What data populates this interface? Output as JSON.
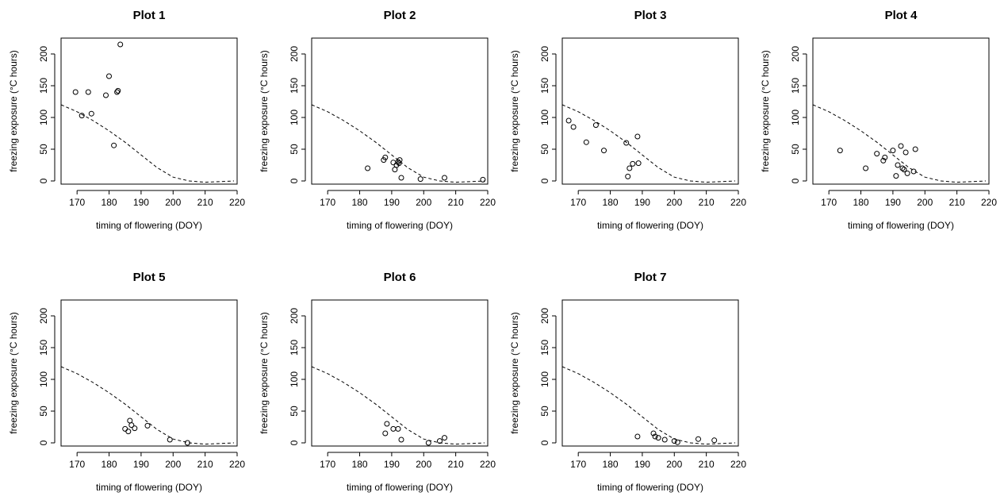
{
  "chart_data": [
    {
      "type": "scatter",
      "title": "Plot 1",
      "xlabel": "timing of flowering (DOY)",
      "ylabel": "freezing exposure (°C hours)",
      "xlim": [
        165,
        220
      ],
      "ylim": [
        -5,
        225
      ],
      "xticks": [
        170,
        180,
        190,
        200,
        210,
        220
      ],
      "yticks": [
        0,
        50,
        100,
        150,
        200
      ],
      "points": [
        [
          169.5,
          140
        ],
        [
          171.5,
          103
        ],
        [
          173.5,
          140
        ],
        [
          174.5,
          106
        ],
        [
          179.0,
          135
        ],
        [
          180.0,
          165
        ],
        [
          181.5,
          56
        ],
        [
          182.5,
          140
        ],
        [
          182.8,
          142
        ],
        [
          183.5,
          215
        ]
      ],
      "curve": [
        [
          165,
          120
        ],
        [
          170,
          109
        ],
        [
          175,
          95
        ],
        [
          180,
          79
        ],
        [
          185,
          61
        ],
        [
          190,
          41
        ],
        [
          195,
          21
        ],
        [
          200,
          6
        ],
        [
          205,
          0
        ],
        [
          210,
          -2
        ],
        [
          215,
          -1
        ],
        [
          219,
          0
        ]
      ]
    },
    {
      "type": "scatter",
      "title": "Plot 2",
      "xlabel": "timing of flowering (DOY)",
      "ylabel": "freezing exposure (°C hours)",
      "xlim": [
        165,
        220
      ],
      "ylim": [
        -5,
        225
      ],
      "xticks": [
        170,
        180,
        190,
        200,
        210,
        220
      ],
      "yticks": [
        0,
        50,
        100,
        150,
        200
      ],
      "points": [
        [
          182.5,
          20
        ],
        [
          187.5,
          33
        ],
        [
          188.0,
          37
        ],
        [
          190.5,
          29
        ],
        [
          191.0,
          18
        ],
        [
          191.5,
          25
        ],
        [
          192.0,
          30
        ],
        [
          192.3,
          28
        ],
        [
          192.5,
          33
        ],
        [
          193.0,
          5
        ],
        [
          199.0,
          3
        ],
        [
          206.5,
          5
        ],
        [
          218.5,
          2
        ]
      ],
      "curve": [
        [
          165,
          120
        ],
        [
          170,
          109
        ],
        [
          175,
          95
        ],
        [
          180,
          79
        ],
        [
          185,
          61
        ],
        [
          190,
          41
        ],
        [
          195,
          21
        ],
        [
          200,
          6
        ],
        [
          205,
          0
        ],
        [
          210,
          -2
        ],
        [
          215,
          -1
        ],
        [
          219,
          0
        ]
      ]
    },
    {
      "type": "scatter",
      "title": "Plot 3",
      "xlabel": "timing of flowering (DOY)",
      "ylabel": "freezing exposure (°C hours)",
      "xlim": [
        165,
        220
      ],
      "ylim": [
        -5,
        225
      ],
      "xticks": [
        170,
        180,
        190,
        200,
        210,
        220
      ],
      "yticks": [
        0,
        50,
        100,
        150,
        200
      ],
      "points": [
        [
          167.0,
          95
        ],
        [
          168.5,
          85
        ],
        [
          172.5,
          61
        ],
        [
          175.5,
          88
        ],
        [
          178.0,
          48
        ],
        [
          185.0,
          60
        ],
        [
          185.5,
          7
        ],
        [
          186.0,
          20
        ],
        [
          187.0,
          27
        ],
        [
          188.5,
          70
        ],
        [
          188.8,
          28
        ]
      ],
      "curve": [
        [
          165,
          120
        ],
        [
          170,
          109
        ],
        [
          175,
          95
        ],
        [
          180,
          79
        ],
        [
          185,
          61
        ],
        [
          190,
          41
        ],
        [
          195,
          21
        ],
        [
          200,
          6
        ],
        [
          205,
          0
        ],
        [
          210,
          -2
        ],
        [
          215,
          -1
        ],
        [
          219,
          0
        ]
      ]
    },
    {
      "type": "scatter",
      "title": "Plot 4",
      "xlabel": "timing of flowering (DOY)",
      "ylabel": "freezing exposure (°C hours)",
      "xlim": [
        165,
        220
      ],
      "ylim": [
        -5,
        225
      ],
      "xticks": [
        170,
        180,
        190,
        200,
        210,
        220
      ],
      "yticks": [
        0,
        50,
        100,
        150,
        200
      ],
      "points": [
        [
          173.5,
          48
        ],
        [
          181.5,
          20
        ],
        [
          185.0,
          43
        ],
        [
          187.0,
          32
        ],
        [
          187.5,
          37
        ],
        [
          190.0,
          48
        ],
        [
          191.0,
          8
        ],
        [
          191.5,
          25
        ],
        [
          192.5,
          55
        ],
        [
          193.0,
          20
        ],
        [
          193.5,
          18
        ],
        [
          194.0,
          45
        ],
        [
          194.5,
          12
        ],
        [
          196.5,
          15
        ],
        [
          197.0,
          50
        ]
      ],
      "curve": [
        [
          165,
          120
        ],
        [
          170,
          109
        ],
        [
          175,
          95
        ],
        [
          180,
          79
        ],
        [
          185,
          61
        ],
        [
          190,
          41
        ],
        [
          195,
          21
        ],
        [
          200,
          6
        ],
        [
          205,
          0
        ],
        [
          210,
          -2
        ],
        [
          215,
          -1
        ],
        [
          219,
          0
        ]
      ]
    },
    {
      "type": "scatter",
      "title": "Plot 5",
      "xlabel": "timing of flowering (DOY)",
      "ylabel": "freezing exposure (°C hours)",
      "xlim": [
        165,
        220
      ],
      "ylim": [
        -5,
        225
      ],
      "xticks": [
        170,
        180,
        190,
        200,
        210,
        220
      ],
      "yticks": [
        0,
        50,
        100,
        150,
        200
      ],
      "points": [
        [
          185.0,
          22
        ],
        [
          186.0,
          18
        ],
        [
          186.5,
          35
        ],
        [
          187.0,
          28
        ],
        [
          188.0,
          23
        ],
        [
          192.0,
          27
        ],
        [
          199.0,
          5
        ],
        [
          204.5,
          0
        ]
      ],
      "curve": [
        [
          165,
          120
        ],
        [
          170,
          109
        ],
        [
          175,
          95
        ],
        [
          180,
          79
        ],
        [
          185,
          61
        ],
        [
          190,
          41
        ],
        [
          195,
          21
        ],
        [
          200,
          6
        ],
        [
          205,
          0
        ],
        [
          210,
          -2
        ],
        [
          215,
          -1
        ],
        [
          219,
          0
        ]
      ]
    },
    {
      "type": "scatter",
      "title": "Plot 6",
      "xlabel": "timing of flowering (DOY)",
      "ylabel": "freezing exposure (°C hours)",
      "xlim": [
        165,
        220
      ],
      "ylim": [
        -5,
        225
      ],
      "xticks": [
        170,
        180,
        190,
        200,
        210,
        220
      ],
      "yticks": [
        0,
        50,
        100,
        150,
        200
      ],
      "points": [
        [
          188.0,
          15
        ],
        [
          188.5,
          30
        ],
        [
          190.5,
          22
        ],
        [
          192.0,
          22
        ],
        [
          193.0,
          5
        ],
        [
          201.5,
          0
        ],
        [
          205.0,
          3
        ],
        [
          206.5,
          8
        ]
      ],
      "curve": [
        [
          165,
          120
        ],
        [
          170,
          109
        ],
        [
          175,
          95
        ],
        [
          180,
          79
        ],
        [
          185,
          61
        ],
        [
          190,
          41
        ],
        [
          195,
          21
        ],
        [
          200,
          6
        ],
        [
          205,
          0
        ],
        [
          210,
          -2
        ],
        [
          215,
          -1
        ],
        [
          219,
          0
        ]
      ]
    },
    {
      "type": "scatter",
      "title": "Plot 7",
      "xlabel": "timing of flowering (DOY)",
      "ylabel": "freezing exposure (°C hours)",
      "xlim": [
        165,
        220
      ],
      "ylim": [
        -5,
        225
      ],
      "xticks": [
        170,
        180,
        190,
        200,
        210,
        220
      ],
      "yticks": [
        0,
        50,
        100,
        150,
        200
      ],
      "points": [
        [
          188.5,
          10
        ],
        [
          193.5,
          15
        ],
        [
          194.0,
          10
        ],
        [
          195.0,
          8
        ],
        [
          197.0,
          5
        ],
        [
          200.0,
          3
        ],
        [
          201.0,
          1
        ],
        [
          207.5,
          6
        ],
        [
          212.5,
          4
        ]
      ],
      "curve": [
        [
          165,
          120
        ],
        [
          170,
          109
        ],
        [
          175,
          95
        ],
        [
          180,
          79
        ],
        [
          185,
          61
        ],
        [
          190,
          41
        ],
        [
          195,
          21
        ],
        [
          200,
          6
        ],
        [
          205,
          0
        ],
        [
          210,
          -2
        ],
        [
          215,
          -1
        ],
        [
          219,
          0
        ]
      ]
    }
  ]
}
